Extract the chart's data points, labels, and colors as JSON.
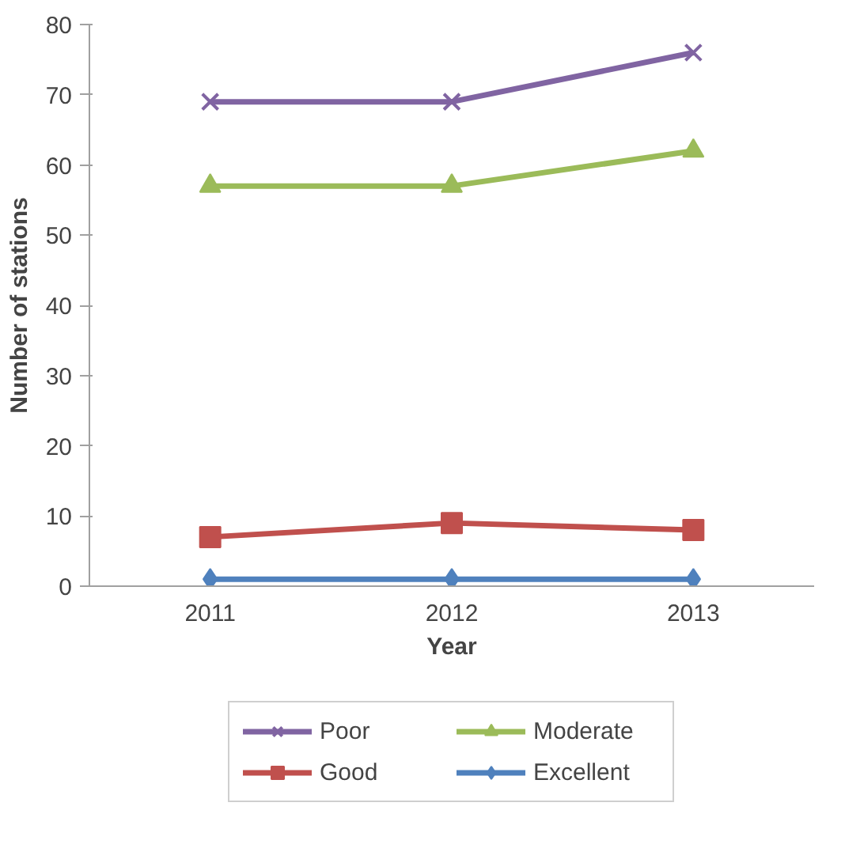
{
  "chart_data": {
    "type": "line",
    "xlabel": "Year",
    "ylabel": "Number of stations",
    "categories": [
      "2011",
      "2012",
      "2013"
    ],
    "ylim": [
      0,
      80
    ],
    "yticks": [
      0,
      10,
      20,
      30,
      40,
      50,
      60,
      70,
      80
    ],
    "grid": false,
    "legend": "bottom",
    "series": [
      {
        "name": "Poor",
        "color": "#8064a2",
        "marker": "cross",
        "values": [
          69,
          69,
          76
        ]
      },
      {
        "name": "Good",
        "color": "#c0504d",
        "marker": "square",
        "values": [
          7,
          9,
          8
        ]
      },
      {
        "name": "Moderate",
        "color": "#9bbb59",
        "marker": "triangle",
        "values": [
          57,
          57,
          62
        ]
      },
      {
        "name": "Excellent",
        "color": "#4f81bd",
        "marker": "diamond",
        "values": [
          1,
          1,
          1
        ]
      }
    ]
  }
}
